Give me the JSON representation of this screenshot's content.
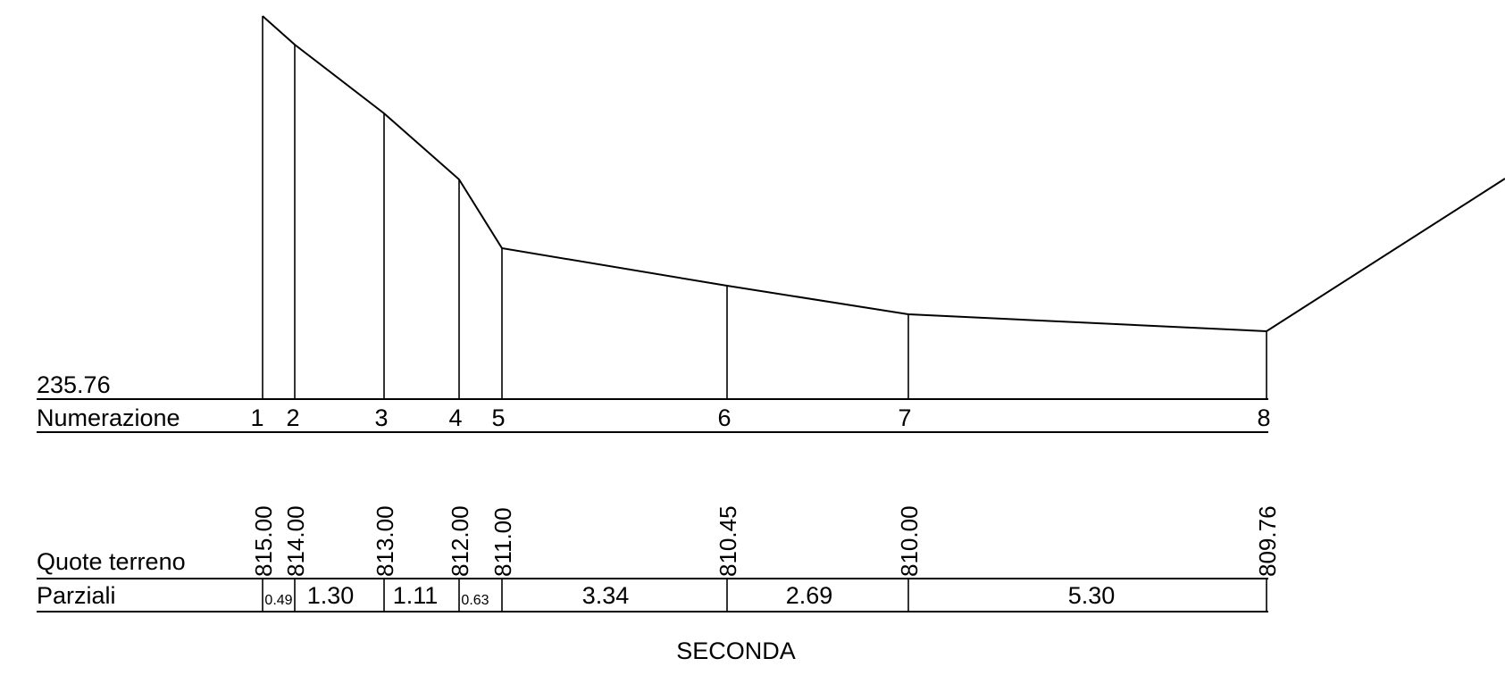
{
  "datum": "235.76",
  "row_labels": {
    "numbering": "Numerazione",
    "ground_elevation": "Quote terreno",
    "partials": "Parziali"
  },
  "section_title": "SECONDA",
  "stations": [
    {
      "number": "1",
      "elevation": "815.00",
      "elevation_value": 815.0
    },
    {
      "number": "2",
      "elevation": "814.00",
      "elevation_value": 814.0
    },
    {
      "number": "3",
      "elevation": "813.00",
      "elevation_value": 813.0
    },
    {
      "number": "4",
      "elevation": "812.00",
      "elevation_value": 812.0
    },
    {
      "number": "5",
      "elevation": "811.00",
      "elevation_value": 811.0
    },
    {
      "number": "6",
      "elevation": "810.45",
      "elevation_value": 810.45
    },
    {
      "number": "7",
      "elevation": "810.00",
      "elevation_value": 810.0
    },
    {
      "number": "8",
      "elevation": "809.76",
      "elevation_value": 809.76
    }
  ],
  "partials": [
    "0.49",
    "1.30",
    "1.11",
    "0.63",
    "3.34",
    "2.69",
    "5.30"
  ]
}
